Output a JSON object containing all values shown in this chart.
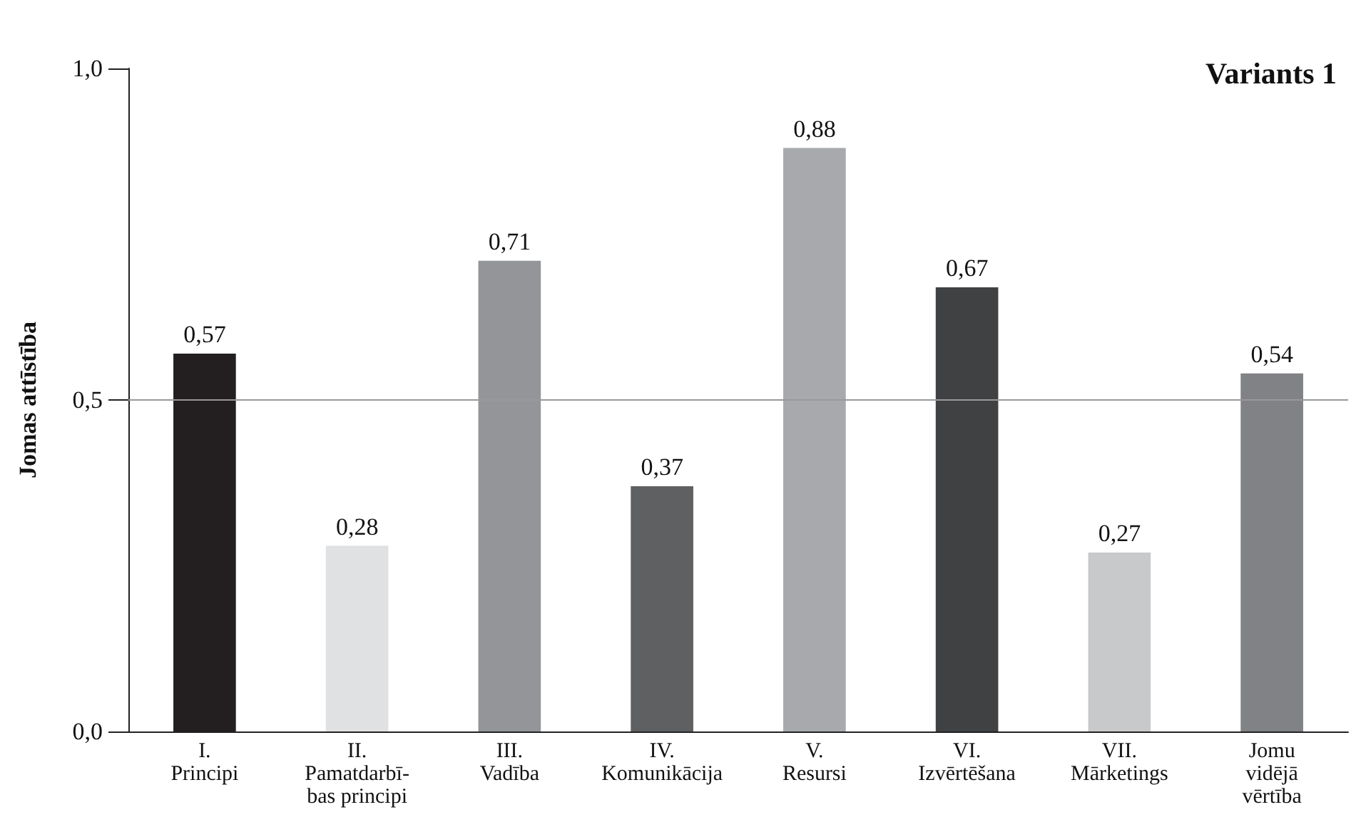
{
  "chart_data": {
    "type": "bar",
    "title": "Variants 1",
    "ylabel": "Jomas attīstība",
    "categories": [
      "I.\nPrincipi",
      "II.\nPamatdarbī-\nbas principi",
      "III.\nVadība",
      "IV.\nKomunikācija",
      "V.\nResursi",
      "VI.\nIzvērtēšana",
      "VII.\nMārketings",
      "Jomu\nvidējā\nvērtība"
    ],
    "values": [
      0.57,
      0.28,
      0.71,
      0.37,
      0.88,
      0.67,
      0.27,
      0.54
    ],
    "colors": [
      "#231f20",
      "#e0e1e3",
      "#939598",
      "#5f6062",
      "#a7a9ac",
      "#404143",
      "#c8c9cb",
      "#808285"
    ],
    "value_labels": [
      "0,57",
      "0,28",
      "0,71",
      "0,37",
      "0,88",
      "0,67",
      "0,27",
      "0,54"
    ],
    "ylim": [
      0,
      1
    ],
    "yticks": [
      {
        "value": 0,
        "label": "0,0"
      },
      {
        "value": 0.5,
        "label": "0,5"
      },
      {
        "value": 1,
        "label": "1,0"
      }
    ],
    "ref_lines": [
      {
        "axis": "y",
        "value": 0.5,
        "color": "#999999"
      }
    ]
  }
}
